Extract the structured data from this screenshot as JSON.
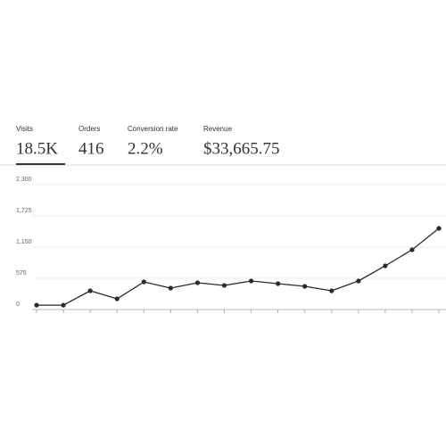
{
  "tabs": [
    {
      "label": "Visits",
      "value": "18.5K"
    },
    {
      "label": "Orders",
      "value": "416"
    },
    {
      "label": "Conversion rate",
      "value": "2.2%"
    },
    {
      "label": "Revenue",
      "value": "$33,665.75"
    }
  ],
  "chart_data": {
    "type": "line",
    "categories": [
      null,
      null,
      null,
      null,
      null,
      null,
      null,
      null,
      null,
      null,
      null,
      null,
      null,
      null,
      null,
      null
    ],
    "values": [
      80,
      80,
      345,
      197,
      509,
      394,
      493,
      444,
      526,
      476,
      427,
      345,
      526,
      805,
      1101,
      1495
    ],
    "color": "#2b2b2b",
    "ylim": [
      0,
      2300
    ],
    "yticks": [
      0,
      575,
      {
        "value": 1150,
        "label": "1,150"
      },
      {
        "value": 1725,
        "label": "1,725"
      },
      {
        "value": 2300,
        "label": "2,300"
      }
    ],
    "grid": true
  }
}
